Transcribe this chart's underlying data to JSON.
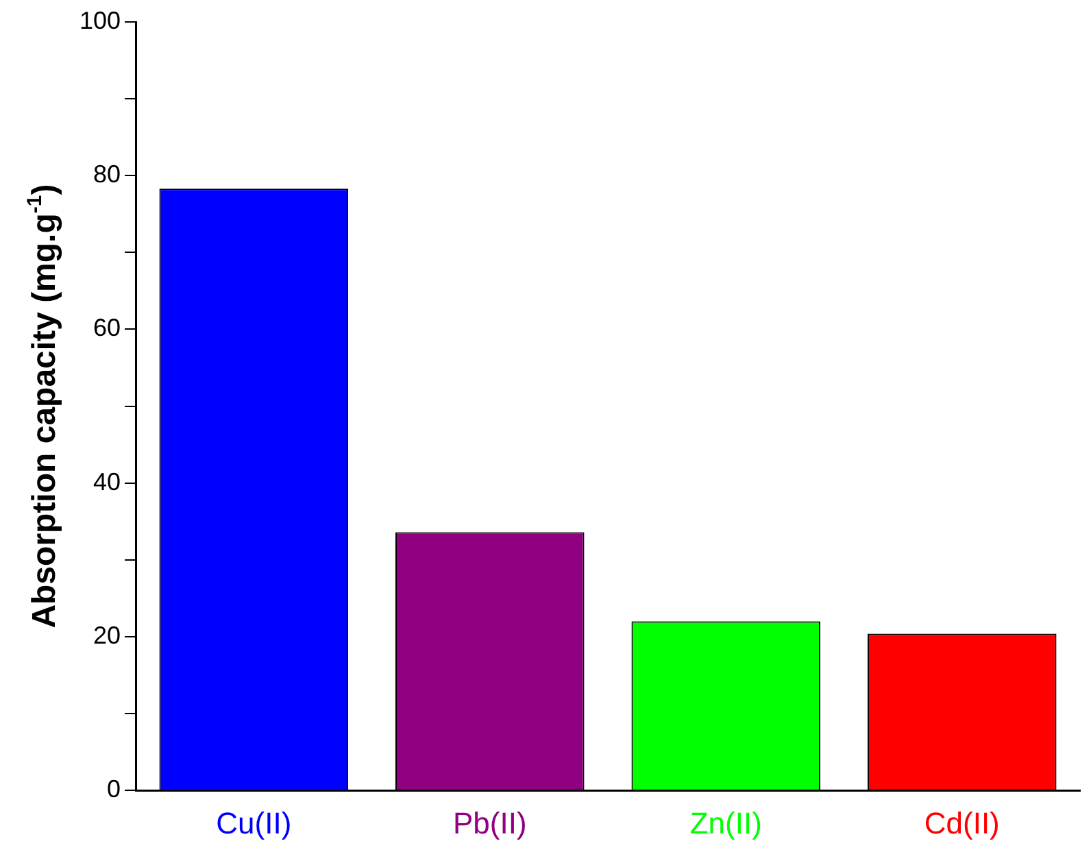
{
  "chart_data": {
    "type": "bar",
    "ylabel": "Absorption capacity (mg.g$^{-1}$)",
    "categories": [
      "Cu(II)",
      "Pb(II)",
      "Zn(II)",
      "Cd(II)"
    ],
    "values": [
      78.3,
      33.6,
      22.0,
      20.4
    ],
    "colors": [
      "#0000ff",
      "#900080",
      "#00ff00",
      "#ff0000"
    ],
    "ylim": [
      0,
      100
    ],
    "yticks": [
      0,
      {
        "value": 10,
        "label": null
      },
      20,
      {
        "value": 30,
        "label": null
      },
      40,
      {
        "value": 50,
        "label": null
      },
      60,
      {
        "value": 70,
        "label": null
      },
      80,
      {
        "value": 90,
        "label": null
      },
      100
    ],
    "grid": false,
    "legend": false
  }
}
